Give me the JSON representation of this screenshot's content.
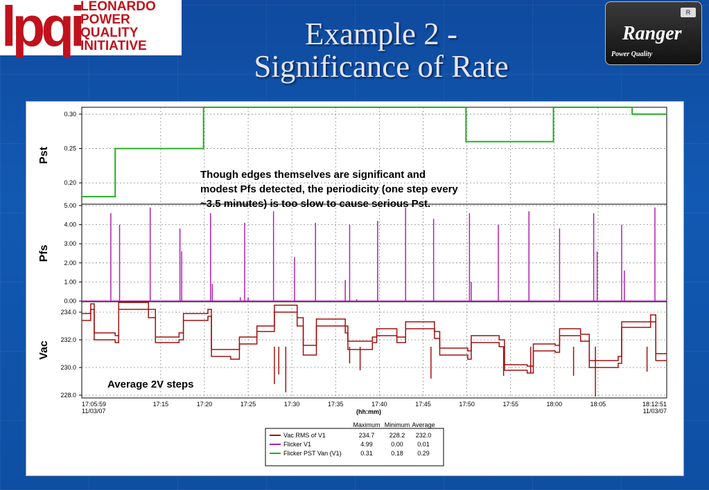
{
  "header": {
    "logo_mark": "lpqi",
    "logo_lines": [
      "LEONARDO",
      "POWER",
      "QUALITY",
      "INITIATIVE"
    ],
    "title_line1": "Example 2 -",
    "title_line2": "Significance of Rate",
    "ranger_name": "Ranger",
    "ranger_sub": "Power Quality",
    "ranger_badge": "R"
  },
  "chart_data": {
    "type": "line",
    "xlabel": "(hh:mm)",
    "start_label": [
      "17:05:59",
      "11/03/07"
    ],
    "end_label": [
      "18:12:51",
      "11/03/07"
    ],
    "x_ticks": [
      "17:15",
      "17:20",
      "17:25",
      "17:30",
      "17:35",
      "17:40",
      "17:45",
      "17:50",
      "17:55",
      "18:00",
      "18:05"
    ],
    "x_tick_minutes": [
      15,
      20,
      25,
      30,
      35,
      40,
      45,
      50,
      55,
      60,
      65
    ],
    "x_range_minutes": [
      5.98,
      72.85
    ],
    "panels": [
      {
        "ylabel": "Pst",
        "yticks": [
          0.2,
          0.25,
          0.3
        ],
        "ytick_labels": [
          "0.20",
          "0.25",
          "0.30"
        ],
        "ylim": [
          0.17,
          0.31
        ],
        "series": "Flicker PST Van   (V1)",
        "color": "#22b022",
        "steps": [
          [
            5.98,
            0.18
          ],
          [
            9.8,
            0.25
          ],
          [
            19.9,
            0.31
          ],
          [
            49.9,
            0.26
          ],
          [
            59.9,
            0.31
          ],
          [
            68.9,
            0.3
          ],
          [
            72.85,
            0.3
          ]
        ]
      },
      {
        "ylabel": "Pfs",
        "yticks": [
          0,
          1,
          2,
          3,
          4,
          5
        ],
        "ytick_labels": [
          "0.00",
          "1.00",
          "2.00",
          "3.00",
          "4.00",
          "5.00"
        ],
        "ylim": [
          0,
          5
        ],
        "series": "Flicker V1",
        "color": "#b020b0",
        "spikes": [
          [
            9.3,
            4.6
          ],
          [
            10.3,
            4.0
          ],
          [
            13.8,
            4.9
          ],
          [
            17.2,
            3.8
          ],
          [
            17.4,
            2.6
          ],
          [
            20.7,
            4.6
          ],
          [
            20.9,
            0.9
          ],
          [
            24.1,
            0.2
          ],
          [
            24.6,
            4.1
          ],
          [
            25.0,
            0.2
          ],
          [
            27.9,
            4.7
          ],
          [
            30.3,
            2.3
          ],
          [
            32.7,
            4.1
          ],
          [
            36.1,
            1.1
          ],
          [
            36.6,
            4.0
          ],
          [
            37.4,
            0.1
          ],
          [
            39.8,
            4.2
          ],
          [
            43.0,
            4.9
          ],
          [
            46.2,
            4.3
          ],
          [
            50.3,
            4.6
          ],
          [
            50.5,
            1.0
          ],
          [
            53.6,
            4.0
          ],
          [
            57.1,
            4.7
          ],
          [
            60.6,
            3.8
          ],
          [
            64.5,
            4.6
          ],
          [
            64.9,
            2.6
          ],
          [
            67.7,
            4.0
          ],
          [
            68.0,
            1.6
          ],
          [
            71.5,
            4.9
          ]
        ]
      },
      {
        "ylabel": "Vac",
        "yticks": [
          228,
          230,
          232,
          234
        ],
        "ytick_labels": [
          "228.0",
          "230.0",
          "232.0",
          "234.0"
        ],
        "ylim": [
          227.8,
          234.7
        ],
        "series": "Vac RMS of V1",
        "color": "#a01010",
        "steps_high": [
          [
            5.98,
            233.9
          ],
          [
            7.0,
            234.6
          ],
          [
            7.4,
            232.5
          ],
          [
            9.8,
            232.3
          ],
          [
            10.2,
            234.7
          ],
          [
            13.6,
            234.2
          ],
          [
            14.4,
            232.2
          ],
          [
            17.1,
            232.5
          ],
          [
            17.6,
            233.9
          ],
          [
            20.4,
            234.2
          ],
          [
            20.8,
            231.3
          ],
          [
            23.0,
            231.3
          ],
          [
            24.0,
            232.2
          ],
          [
            26.0,
            233.0
          ],
          [
            27.3,
            233.0
          ],
          [
            28.0,
            234.5
          ],
          [
            30.6,
            233.6
          ],
          [
            31.3,
            231.6
          ],
          [
            32.8,
            233.5
          ],
          [
            36.1,
            233.0
          ],
          [
            36.4,
            231.9
          ],
          [
            39.2,
            232.2
          ],
          [
            39.7,
            232.8
          ],
          [
            42.0,
            232.2
          ],
          [
            43.0,
            233.3
          ],
          [
            46.3,
            232.6
          ],
          [
            46.9,
            231.4
          ],
          [
            50.1,
            231.2
          ],
          [
            50.5,
            232.3
          ],
          [
            53.7,
            232.0
          ],
          [
            54.3,
            230.2
          ],
          [
            56.9,
            230.1
          ],
          [
            57.6,
            231.7
          ],
          [
            60.1,
            231.6
          ],
          [
            60.6,
            232.8
          ],
          [
            63.0,
            232.4
          ],
          [
            64.0,
            230.5
          ],
          [
            67.3,
            230.8
          ],
          [
            67.7,
            233.3
          ],
          [
            71.0,
            233.8
          ],
          [
            71.6,
            231.0
          ],
          [
            72.85,
            231.0
          ]
        ],
        "steps_low": [
          [
            5.98,
            233.4
          ],
          [
            7.0,
            234.2
          ],
          [
            7.4,
            232.0
          ],
          [
            9.8,
            231.8
          ],
          [
            10.2,
            234.2
          ],
          [
            13.6,
            233.6
          ],
          [
            14.4,
            231.8
          ],
          [
            17.1,
            232.0
          ],
          [
            17.6,
            233.4
          ],
          [
            20.4,
            233.7
          ],
          [
            20.8,
            230.8
          ],
          [
            23.0,
            230.6
          ],
          [
            24.0,
            231.7
          ],
          [
            26.0,
            232.6
          ],
          [
            27.3,
            232.6
          ],
          [
            28.0,
            234.0
          ],
          [
            30.6,
            233.0
          ],
          [
            31.3,
            230.9
          ],
          [
            32.8,
            233.0
          ],
          [
            36.1,
            232.5
          ],
          [
            36.4,
            231.3
          ],
          [
            39.2,
            231.8
          ],
          [
            39.7,
            232.3
          ],
          [
            42.0,
            231.8
          ],
          [
            43.0,
            232.8
          ],
          [
            46.3,
            232.1
          ],
          [
            46.9,
            230.9
          ],
          [
            50.1,
            230.6
          ],
          [
            50.5,
            231.8
          ],
          [
            53.7,
            231.5
          ],
          [
            54.3,
            229.8
          ],
          [
            56.9,
            229.6
          ],
          [
            57.6,
            231.2
          ],
          [
            60.1,
            231.1
          ],
          [
            60.6,
            232.3
          ],
          [
            63.0,
            231.9
          ],
          [
            64.0,
            230.0
          ],
          [
            67.3,
            230.3
          ],
          [
            67.7,
            232.9
          ],
          [
            71.0,
            233.3
          ],
          [
            71.6,
            230.5
          ],
          [
            72.85,
            230.5
          ]
        ],
        "dips": [
          [
            28.0,
            228.8
          ],
          [
            28.5,
            229.5
          ],
          [
            29.3,
            228.2
          ],
          [
            36.6,
            230.3
          ],
          [
            37.8,
            229.8
          ],
          [
            54.2,
            229.4
          ],
          [
            57.3,
            229.6
          ],
          [
            62.2,
            229.4
          ],
          [
            64.7,
            227.9
          ],
          [
            45.9,
            229.2
          ],
          [
            70.6,
            229.7
          ]
        ]
      }
    ],
    "annotations": [
      "Though edges themselves are significant and",
      "modest Pfs detected, the periodicity (one step every",
      " ~3.5 minutes) is too slow to cause serious Pst.",
      "Average 2V steps"
    ],
    "grid": true,
    "legend": {
      "position": "bottom-center",
      "headers": [
        "Maximum",
        "Minimum",
        "Average"
      ],
      "rows": [
        {
          "name": "Vac RMS of V1",
          "color": "#a01010",
          "max": "234.7",
          "min": "228.2",
          "avg": "232.0"
        },
        {
          "name": "Flicker V1",
          "color": "#b020b0",
          "max": "4.99",
          "min": "0.00",
          "avg": "0.01"
        },
        {
          "name": "Flicker PST Van   (V1)",
          "color": "#22b022",
          "max": "0.31",
          "min": "0.18",
          "avg": "0.29"
        }
      ]
    }
  }
}
